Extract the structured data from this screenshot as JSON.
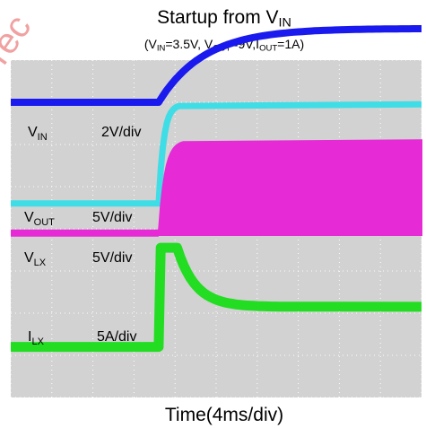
{
  "watermark_text": "rec",
  "chart_data": {
    "type": "line",
    "title": "Startup from V_IN",
    "subtitle": "(V_IN=3.5V, V_OUT=9V, I_OUT=1A)",
    "xlabel": "Time(4ms/div)",
    "x_divisions": 10,
    "y_divisions": 8,
    "grid": true,
    "background_color": "#d2d2d2",
    "grid_color": "#ffffff",
    "start_event_div": 3.6,
    "series": [
      {
        "name": "VIN",
        "label_main": "V",
        "label_sub": "IN",
        "scale": "2V/div",
        "color": "#1a1aee",
        "baseline_div": 7.0,
        "final_div": 8.75,
        "shape": "rise"
      },
      {
        "name": "VOUT",
        "label_main": "V",
        "label_sub": "OUT",
        "scale": "5V/div",
        "color": "#3fdde6",
        "baseline_div": 4.6,
        "final_div": 6.95,
        "shape": "step"
      },
      {
        "name": "VLX",
        "label_main": "V",
        "label_sub": "LX",
        "scale": "5V/div",
        "color": "#e62ad6",
        "baseline_div": 3.9,
        "final_div": 6.1,
        "shape": "switching"
      },
      {
        "name": "ILX",
        "label_main": "I",
        "label_sub": "LX",
        "scale": "5A/div",
        "color": "#22dd22",
        "baseline_div": 1.2,
        "peak_div": 3.55,
        "final_div": 2.15,
        "shape": "inrush"
      }
    ]
  },
  "title_main": "Startup from V",
  "title_sub": "IN",
  "subtitle_parts": {
    "p1": "(V",
    "s1": "IN",
    "p2": "=3.5V, V",
    "s2": "OUT",
    "p3": "=9V,I",
    "s3": "OUT",
    "p4": "=1A)"
  }
}
